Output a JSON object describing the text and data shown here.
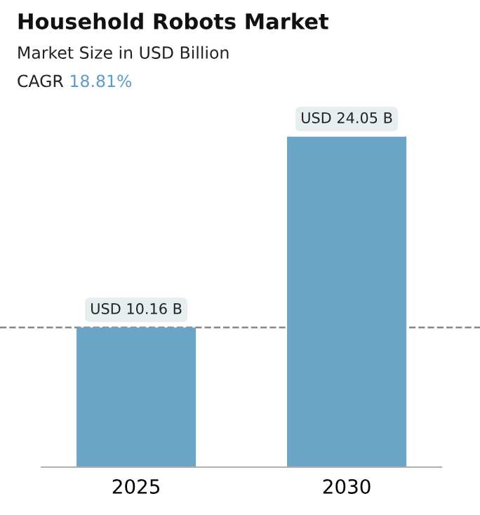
{
  "chart_data": {
    "type": "bar",
    "title": "Household Robots Market",
    "subtitle": "Market Size in USD Billion",
    "annotations": [
      "CAGR 18.81%"
    ],
    "categories": [
      "2025",
      "2030"
    ],
    "values": [
      10.16,
      24.05
    ],
    "color": "#6aa5c5",
    "value_labels": [
      "USD 10.16 B",
      "USD 24.05 B"
    ],
    "ref_lines": [
      {
        "axis": "y",
        "value": 10.16,
        "color": "#888888",
        "line_style": "dashed"
      }
    ],
    "grid": false,
    "legend": false
  }
}
